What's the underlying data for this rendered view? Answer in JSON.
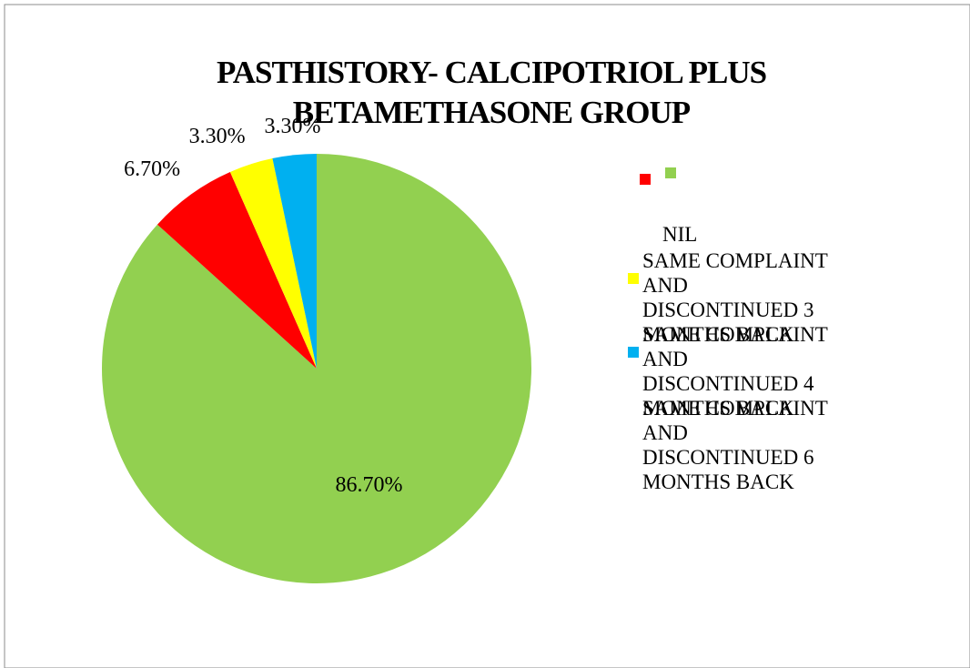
{
  "chart_data": {
    "type": "pie",
    "title": "PASTHISTORY- CALCIPOTRIOL PLUS BETAMETHASONE GROUP",
    "categories": [
      "NIL",
      "SAME COMPLAINT AND DISCONTINUED 3 MONTHS BACK",
      "SAME COMPLAINT AND DISCONTINUED 4 MONTHS BACK",
      "SAME COMPLAINT AND DISCONTINUED 6 MONTHS BACK"
    ],
    "values": [
      86.7,
      6.7,
      3.3,
      3.3
    ],
    "value_labels": [
      "86.70%",
      "6.70%",
      "3.30%",
      "3.30%"
    ],
    "colors": [
      "#92d050",
      "#ff0000",
      "#ffff00",
      "#00b0f0"
    ],
    "legend": "right"
  }
}
